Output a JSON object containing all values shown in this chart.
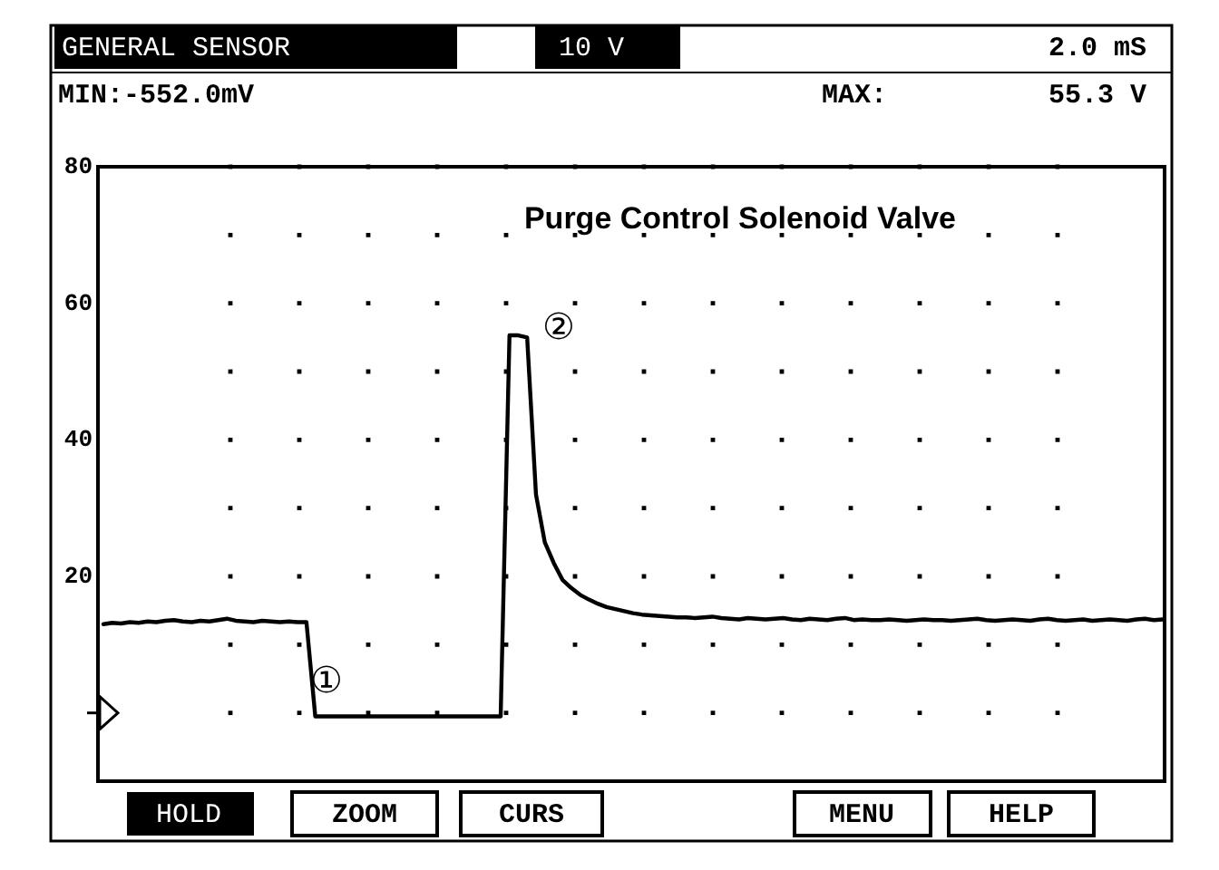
{
  "chart_data": {
    "type": "line",
    "title": "Purge Control Solenoid Valve",
    "categories": [
      null,
      null,
      null,
      null,
      null,
      null,
      null,
      null,
      null,
      null,
      null,
      null,
      null,
      null,
      null,
      null,
      null,
      null,
      null,
      null,
      null,
      null,
      null,
      null,
      null,
      null,
      null,
      null,
      null,
      null,
      null,
      null,
      null,
      null,
      null,
      null,
      null,
      null,
      null,
      null,
      null,
      null,
      null,
      null,
      null,
      null,
      null,
      null,
      null,
      null,
      null,
      null,
      null,
      null,
      null,
      null,
      null,
      null,
      null,
      null,
      null,
      null,
      null,
      null,
      null,
      null,
      null,
      null,
      null,
      null,
      null,
      null,
      null,
      null,
      null,
      null,
      null,
      null,
      null,
      null,
      null,
      null,
      null,
      null,
      null,
      null,
      null,
      null,
      null,
      null,
      null,
      null,
      null,
      null,
      null,
      null,
      null,
      null,
      null,
      null,
      null,
      null,
      null,
      null,
      null,
      null,
      null,
      null,
      null,
      null,
      null,
      null,
      null,
      null,
      null,
      null,
      null,
      null,
      null,
      null,
      null
    ],
    "series": [
      {
        "color": "#000000",
        "values": [
          13.0,
          13.2,
          13.1,
          13.3,
          13.2,
          13.4,
          13.3,
          13.5,
          13.6,
          13.4,
          13.3,
          13.5,
          13.4,
          13.6,
          13.8,
          13.5,
          13.4,
          13.3,
          13.5,
          13.4,
          13.3,
          13.4,
          13.3,
          13.3,
          -0.5,
          -0.5,
          -0.5,
          -0.5,
          -0.5,
          -0.5,
          -0.5,
          -0.5,
          -0.5,
          -0.5,
          -0.5,
          -0.5,
          -0.5,
          -0.5,
          -0.5,
          -0.5,
          -0.5,
          -0.5,
          -0.5,
          -0.5,
          -0.5,
          -0.5,
          55.3,
          55.3,
          55.0,
          32,
          25,
          22,
          19.5,
          18.3,
          17.3,
          16.6,
          16.0,
          15.5,
          15.2,
          14.9,
          14.6,
          14.4,
          14.3,
          14.2,
          14.1,
          14.0,
          14.0,
          13.9,
          14.0,
          14.1,
          13.9,
          13.8,
          13.7,
          13.9,
          13.8,
          13.7,
          13.8,
          13.9,
          13.7,
          13.6,
          13.8,
          13.7,
          13.6,
          13.8,
          13.9,
          13.6,
          13.7,
          13.6,
          13.6,
          13.7,
          13.6,
          13.5,
          13.6,
          13.7,
          13.6,
          13.6,
          13.5,
          13.6,
          13.7,
          13.8,
          13.6,
          13.5,
          13.6,
          13.7,
          13.6,
          13.5,
          13.7,
          13.8,
          13.6,
          13.5,
          13.6,
          13.7,
          13.5,
          13.6,
          13.7,
          13.6,
          13.5,
          13.7,
          13.8,
          13.6,
          13.7
        ]
      }
    ],
    "ylim": [
      -10,
      80
    ],
    "yticks": [
      {
        "value": 0,
        "label": null
      },
      20,
      40,
      60,
      80
    ],
    "grid": true,
    "tick_labels": "y",
    "annotations": [
      "GENERAL SENSOR",
      "10 V",
      "2.0 mS",
      "MIN:-552.0mV",
      "MAX:",
      "55.3 V",
      "①",
      "②",
      "HOLD",
      "ZOOM",
      "CURS",
      "MENU",
      "HELP"
    ]
  }
}
